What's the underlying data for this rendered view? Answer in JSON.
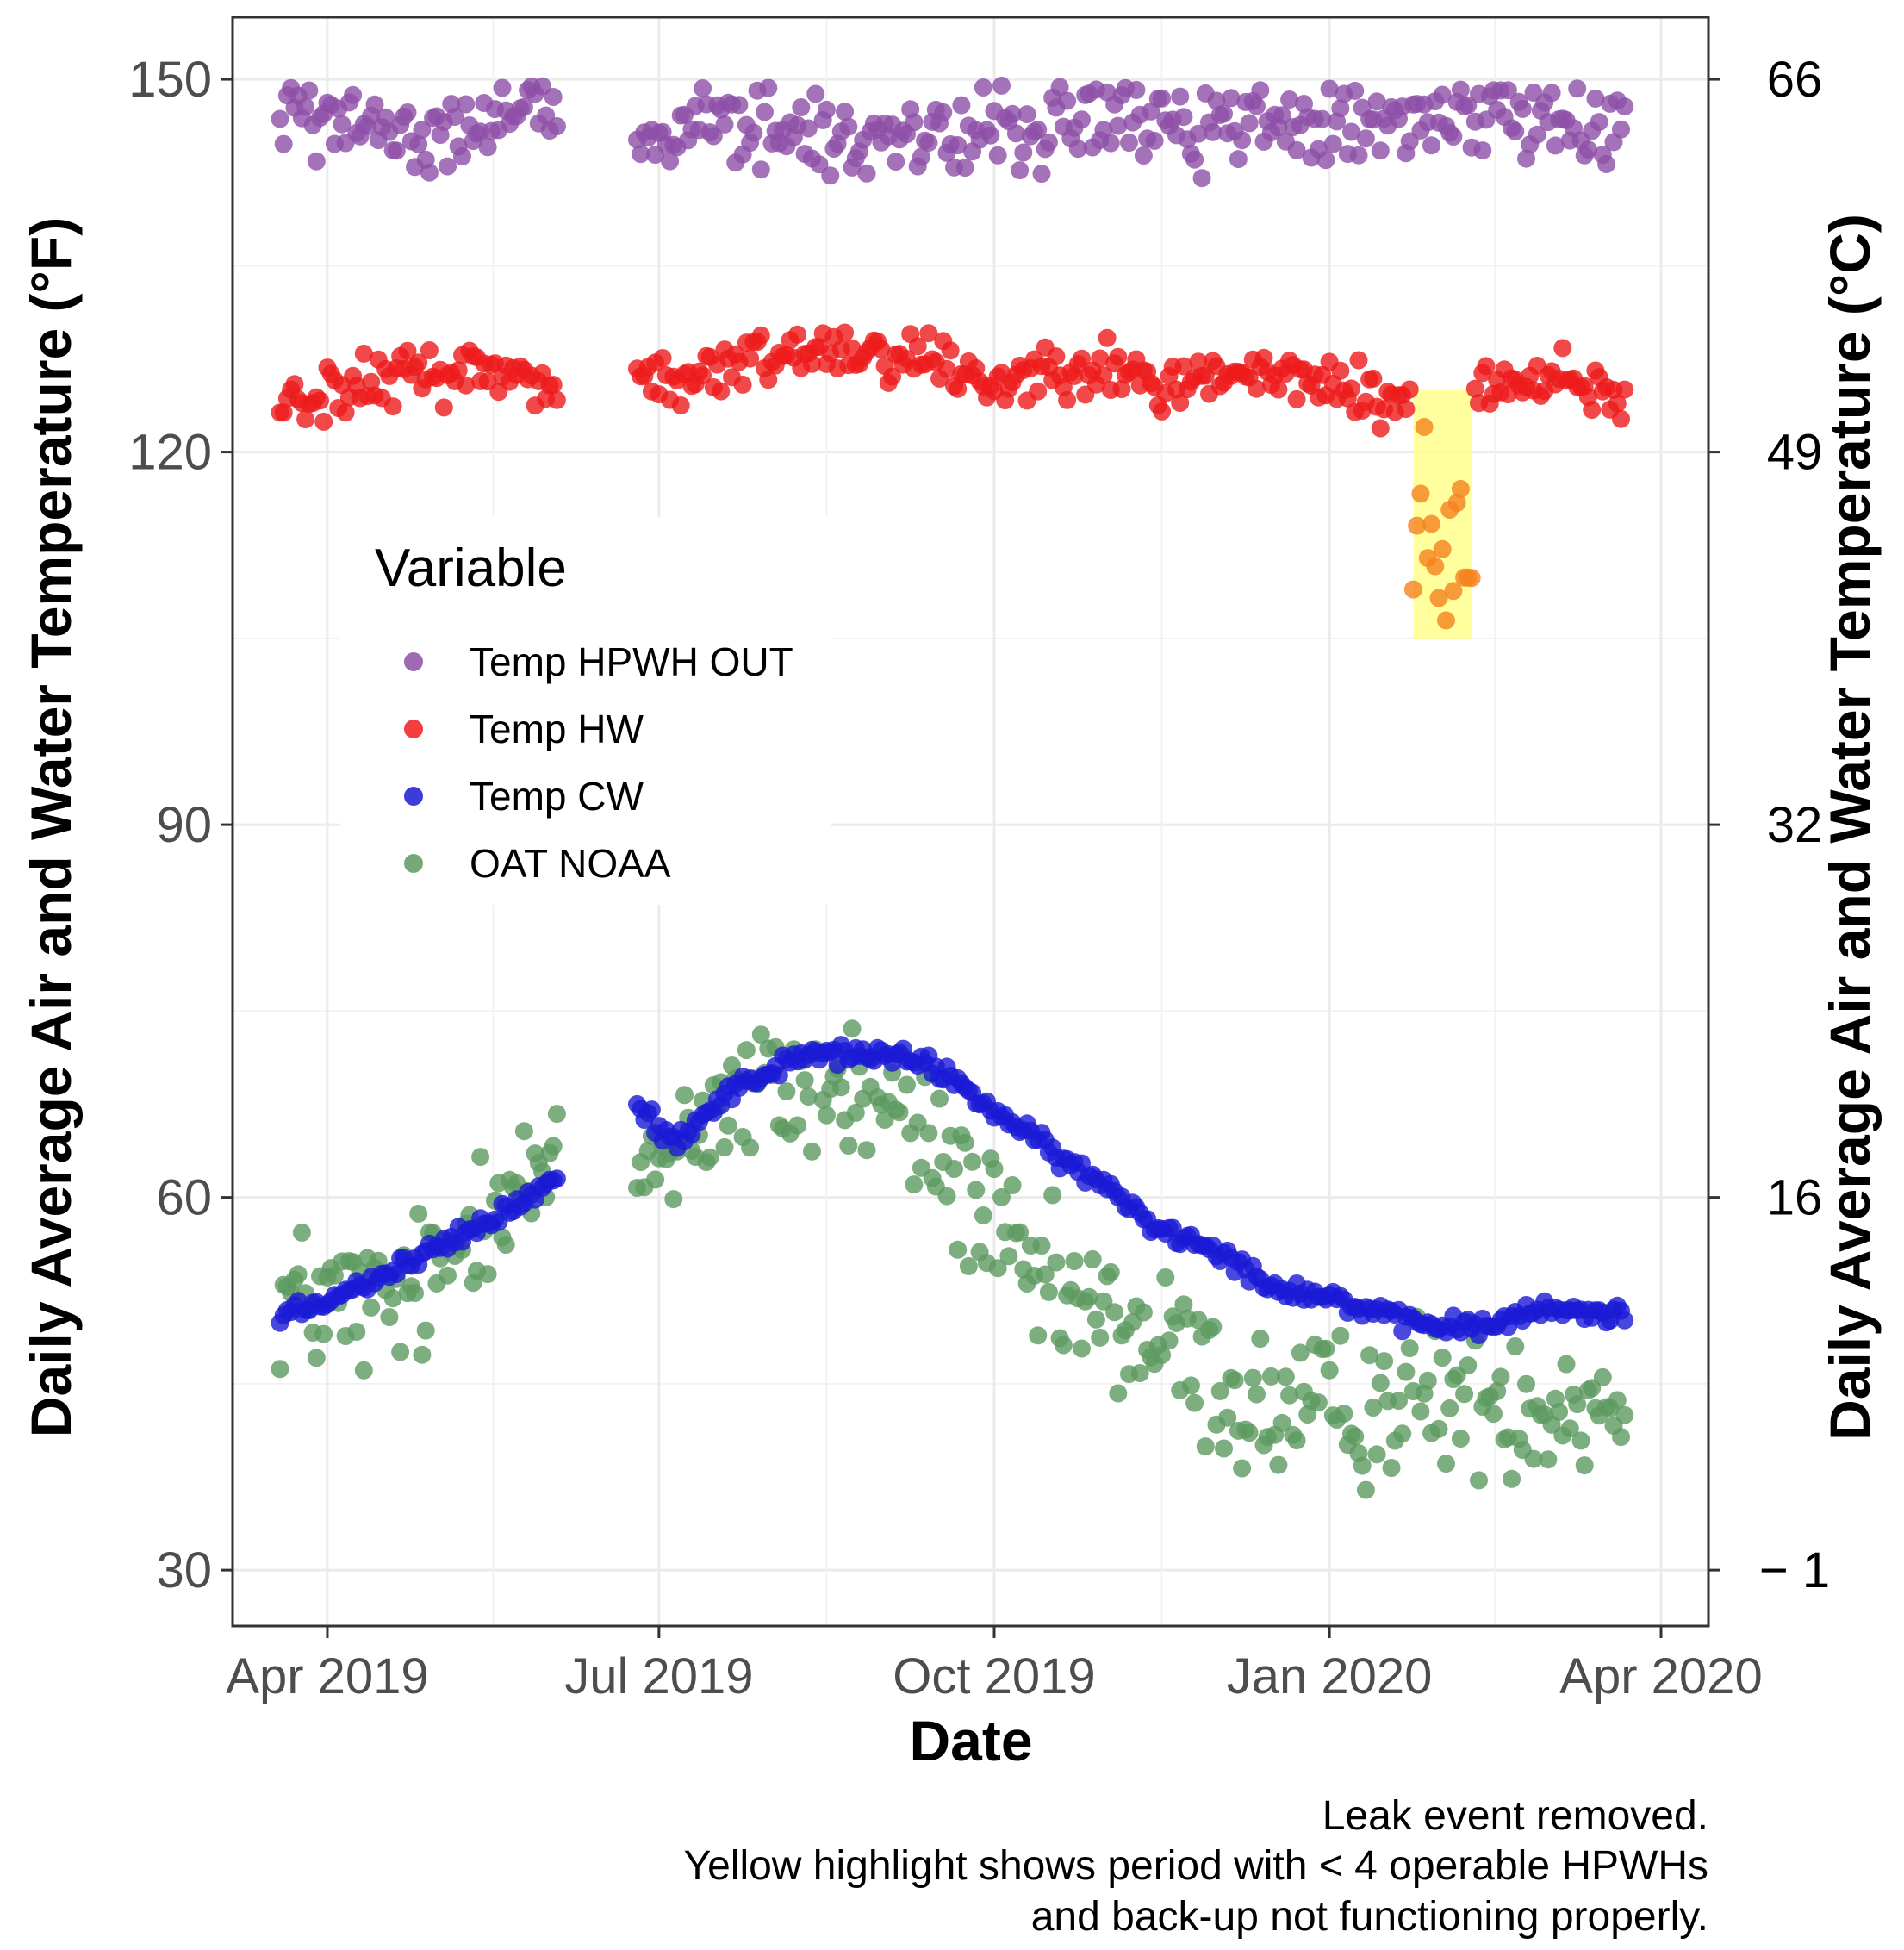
{
  "chart_data": {
    "type": "scatter",
    "title": "",
    "xlabel": "Date",
    "ylabel": "Daily Average Air and Water Temperature (°F)",
    "ylabel_right": "Daily Average Air and Water Temperature (°C)",
    "ylim": [
      25.5,
      155
    ],
    "x_range": [
      "2019-03-06",
      "2020-04-14"
    ],
    "x_ticks": [
      {
        "date": "2019-04-01",
        "label": "Apr 2019"
      },
      {
        "date": "2019-07-01",
        "label": "Jul 2019"
      },
      {
        "date": "2019-10-01",
        "label": "Oct 2019"
      },
      {
        "date": "2020-01-01",
        "label": "Jan 2020"
      },
      {
        "date": "2020-04-01",
        "label": "Apr 2020"
      }
    ],
    "y_ticks": [
      {
        "value": 30,
        "label": "30"
      },
      {
        "value": 60,
        "label": "60"
      },
      {
        "value": 90,
        "label": "90"
      },
      {
        "value": 120,
        "label": "120"
      },
      {
        "value": 150,
        "label": "150"
      }
    ],
    "y_ticks_right": [
      {
        "value": 30,
        "label": "− 1"
      },
      {
        "value": 60,
        "label": "16"
      },
      {
        "value": 90,
        "label": "32"
      },
      {
        "value": 120,
        "label": "49"
      },
      {
        "value": 150,
        "label": "66"
      }
    ],
    "legend": {
      "title": "Variable",
      "position": "inside-left",
      "entries": [
        {
          "name": "Temp HPWH OUT",
          "color": "#8d4fa8"
        },
        {
          "name": "Temp HW",
          "color": "#ee1c1c"
        },
        {
          "name": "Temp CW",
          "color": "#1a1ad6"
        },
        {
          "name": "OAT NOAA",
          "color": "#5d9a60"
        }
      ]
    },
    "highlight": {
      "start": "2020-01-24",
      "end": "2020-02-09",
      "y_min": 105,
      "y_max": 125,
      "color": "#ffff8c"
    },
    "caption": [
      "Leak event removed.",
      "Yellow highlight shows period with < 4 operable HPWHs",
      "and back-up not functioning properly."
    ],
    "gaps": [
      {
        "start": "2019-06-04",
        "end": "2019-06-24"
      }
    ],
    "series": [
      {
        "name": "Temp HPWH OUT",
        "color": "#8d4fa8",
        "x_start": "2019-03-19",
        "x_end": "2020-03-22",
        "trend": [
          {
            "date": "2019-03-19",
            "value": 147.5
          },
          {
            "date": "2019-04-10",
            "value": 146.5
          },
          {
            "date": "2019-05-01",
            "value": 146.0
          },
          {
            "date": "2019-06-01",
            "value": 147.0
          },
          {
            "date": "2019-06-25",
            "value": 145.5
          },
          {
            "date": "2019-07-15",
            "value": 146.5
          },
          {
            "date": "2019-08-15",
            "value": 145.5
          },
          {
            "date": "2019-09-15",
            "value": 145.0
          },
          {
            "date": "2019-10-15",
            "value": 146.5
          },
          {
            "date": "2019-11-15",
            "value": 146.5
          },
          {
            "date": "2019-12-15",
            "value": 146.5
          },
          {
            "date": "2020-01-15",
            "value": 146.0
          },
          {
            "date": "2020-02-15",
            "value": 147.5
          },
          {
            "date": "2020-03-22",
            "value": 146.5
          }
        ],
        "spread": 3.0
      },
      {
        "name": "Temp HW",
        "color": "#ee1c1c",
        "x_start": "2019-03-19",
        "x_end": "2020-03-22",
        "trend": [
          {
            "date": "2019-03-19",
            "value": 124.5
          },
          {
            "date": "2019-04-10",
            "value": 125.0
          },
          {
            "date": "2019-04-25",
            "value": 126.5
          },
          {
            "date": "2019-05-15",
            "value": 126.5
          },
          {
            "date": "2019-06-03",
            "value": 125.5
          },
          {
            "date": "2019-06-25",
            "value": 126.0
          },
          {
            "date": "2019-07-10",
            "value": 125.5
          },
          {
            "date": "2019-08-01",
            "value": 128.0
          },
          {
            "date": "2019-08-20",
            "value": 128.5
          },
          {
            "date": "2019-09-15",
            "value": 127.5
          },
          {
            "date": "2019-10-01",
            "value": 125.5
          },
          {
            "date": "2019-10-25",
            "value": 127.5
          },
          {
            "date": "2019-11-15",
            "value": 125.0
          },
          {
            "date": "2019-12-01",
            "value": 126.5
          },
          {
            "date": "2020-01-01",
            "value": 125.5
          },
          {
            "date": "2020-01-24",
            "value": 123.5
          },
          {
            "date": "2020-02-12",
            "value": 125.5
          },
          {
            "date": "2020-03-01",
            "value": 126.0
          },
          {
            "date": "2020-03-22",
            "value": 124.5
          }
        ],
        "spread": 2.0
      },
      {
        "name": "Temp CW",
        "color": "#1a1ad6",
        "x_start": "2019-03-19",
        "x_end": "2020-03-22",
        "trend": [
          {
            "date": "2019-03-19",
            "value": 50.5
          },
          {
            "date": "2019-04-15",
            "value": 53.5
          },
          {
            "date": "2019-05-05",
            "value": 56.5
          },
          {
            "date": "2019-05-15",
            "value": 58.0
          },
          {
            "date": "2019-06-03",
            "value": 61.5
          },
          {
            "date": "2019-06-24",
            "value": 67.5
          },
          {
            "date": "2019-07-05",
            "value": 64.5
          },
          {
            "date": "2019-07-20",
            "value": 68.5
          },
          {
            "date": "2019-08-10",
            "value": 71.5
          },
          {
            "date": "2019-09-01",
            "value": 71.5
          },
          {
            "date": "2019-09-15",
            "value": 70.5
          },
          {
            "date": "2019-10-01",
            "value": 67.0
          },
          {
            "date": "2019-10-20",
            "value": 63.0
          },
          {
            "date": "2019-11-05",
            "value": 60.0
          },
          {
            "date": "2019-11-15",
            "value": 57.5
          },
          {
            "date": "2019-12-01",
            "value": 56.0
          },
          {
            "date": "2019-12-15",
            "value": 53.0
          },
          {
            "date": "2020-01-01",
            "value": 52.0
          },
          {
            "date": "2020-01-20",
            "value": 50.0
          },
          {
            "date": "2020-02-10",
            "value": 49.5
          },
          {
            "date": "2020-03-01",
            "value": 51.0
          },
          {
            "date": "2020-03-22",
            "value": 50.5
          }
        ],
        "spread": 0.7
      },
      {
        "name": "OAT NOAA",
        "color": "#5d9a60",
        "x_start": "2019-03-19",
        "x_end": "2020-03-22",
        "trend": [
          {
            "date": "2019-03-19",
            "value": 52.0
          },
          {
            "date": "2019-04-15",
            "value": 51.0
          },
          {
            "date": "2019-05-01",
            "value": 53.0
          },
          {
            "date": "2019-05-15",
            "value": 61.0
          },
          {
            "date": "2019-06-03",
            "value": 61.0
          },
          {
            "date": "2019-06-25",
            "value": 62.0
          },
          {
            "date": "2019-07-15",
            "value": 67.0
          },
          {
            "date": "2019-08-10",
            "value": 69.0
          },
          {
            "date": "2019-09-01",
            "value": 68.0
          },
          {
            "date": "2019-09-20",
            "value": 62.0
          },
          {
            "date": "2019-10-10",
            "value": 53.0
          },
          {
            "date": "2019-11-01",
            "value": 50.0
          },
          {
            "date": "2019-11-20",
            "value": 47.5
          },
          {
            "date": "2019-12-10",
            "value": 43.0
          },
          {
            "date": "2020-01-01",
            "value": 42.5
          },
          {
            "date": "2020-01-20",
            "value": 44.0
          },
          {
            "date": "2020-02-15",
            "value": 44.0
          },
          {
            "date": "2020-03-22",
            "value": 43.5
          }
        ],
        "spread": 5.5
      }
    ]
  }
}
